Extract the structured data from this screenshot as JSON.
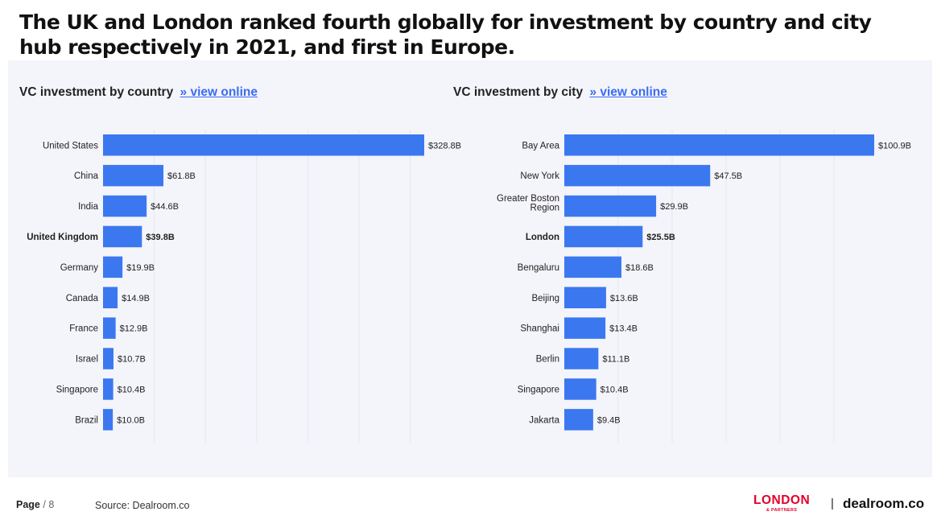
{
  "title": "The UK and London ranked fourth globally for investment by country and city hub respectively in 2021, and first in Europe.",
  "view_online_label": "» view online",
  "colors": {
    "bar": "#3b78f0",
    "panel": "#f4f4fb",
    "link": "#3b6df0",
    "brand_red": "#e4002b"
  },
  "chart_data": [
    {
      "type": "bar",
      "orientation": "horizontal",
      "title": "VC investment by country",
      "grid": true,
      "categories": [
        "United States",
        "China",
        "India",
        "United Kingdom",
        "Germany",
        "Canada",
        "France",
        "Israel",
        "Singapore",
        "Brazil"
      ],
      "values": [
        328.8,
        61.8,
        44.6,
        39.8,
        19.9,
        14.9,
        12.9,
        10.7,
        10.4,
        10.0
      ],
      "labels": [
        "$328.8B",
        "$61.8B",
        "$44.6B",
        "$39.8B",
        "$19.9B",
        "$14.9B",
        "$12.9B",
        "$10.7B",
        "$10.4B",
        "$10.0B"
      ],
      "highlight": "United Kingdom"
    },
    {
      "type": "bar",
      "orientation": "horizontal",
      "title": "VC investment by city",
      "grid": true,
      "categories": [
        "Bay Area",
        "New York",
        "Greater Boston Region",
        "London",
        "Bengaluru",
        "Beijing",
        "Shanghai",
        "Berlin",
        "Singapore",
        "Jakarta"
      ],
      "values": [
        100.9,
        47.5,
        29.9,
        25.5,
        18.6,
        13.6,
        13.4,
        11.1,
        10.4,
        9.4
      ],
      "labels": [
        "$100.9B",
        "$47.5B",
        "$29.9B",
        "$25.5B",
        "$18.6B",
        "$13.6B",
        "$13.4B",
        "$11.1B",
        "$10.4B",
        "$9.4B"
      ],
      "highlight": "London"
    }
  ],
  "footer": {
    "page_label": "Page",
    "page_number": "/ 8",
    "source": "Source: Dealroom.co",
    "logo_main": "LONDON",
    "logo_sub": "& PARTNERS",
    "separator": "|",
    "brand": "dealroom.co"
  }
}
